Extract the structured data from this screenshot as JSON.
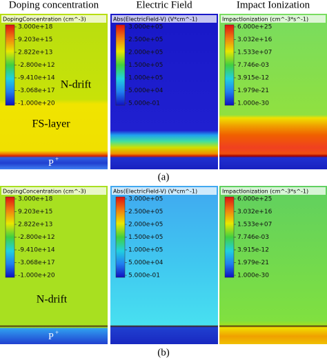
{
  "column_titles": [
    "Doping concentration",
    "Electric Field",
    "Impact Ionization"
  ],
  "figures": [
    {
      "caption": "(a)",
      "panels": [
        {
          "legend_title": "DopingConcentration (cm^-3)",
          "ticks": [
            "3.000e+18",
            "9.203e+15",
            "2.822e+13",
            "-2.800e+12",
            "-9.410e+14",
            "-3.068e+17",
            "-1.000e+20"
          ]
        },
        {
          "legend_title": "Abs(ElectricField-V) (V*cm^-1)",
          "ticks": [
            "3.000e+05",
            "2.500e+05",
            "2.000e+05",
            "1.500e+05",
            "1.000e+05",
            "5.000e+04",
            "5.000e-01"
          ]
        },
        {
          "legend_title": "ImpactIonization (cm^-3*s^-1)",
          "ticks": [
            "6.000e+25",
            "3.032e+16",
            "1.533e+07",
            "7.746e-03",
            "3.915e-12",
            "1.979e-21",
            "1.000e-30"
          ]
        }
      ],
      "regions": {
        "drift": "N-drift",
        "fs": "FS-layer",
        "p": "P",
        "p_sup": "+"
      }
    },
    {
      "caption": "(b)",
      "panels": [
        {
          "legend_title": "DopingConcentration (cm^-3)",
          "ticks": [
            "3.000e+18",
            "9.203e+15",
            "2.822e+13",
            "-2.800e+12",
            "-9.410e+14",
            "-3.068e+17",
            "-1.000e+20"
          ]
        },
        {
          "legend_title": "Abs(ElectricField-V) (V*cm^-1)",
          "ticks": [
            "3.000e+05",
            "2.500e+05",
            "2.000e+05",
            "1.500e+05",
            "1.000e+05",
            "5.000e+04",
            "5.000e-01"
          ]
        },
        {
          "legend_title": "ImpactIonization (cm^-3*s^-1)",
          "ticks": [
            "6.000e+25",
            "3.032e+16",
            "1.533e+07",
            "7.746e-03",
            "3.915e-12",
            "1.979e-21",
            "1.000e-30"
          ]
        }
      ],
      "regions": {
        "drift": "N-drift",
        "p": "P",
        "p_sup": "+"
      }
    }
  ]
}
